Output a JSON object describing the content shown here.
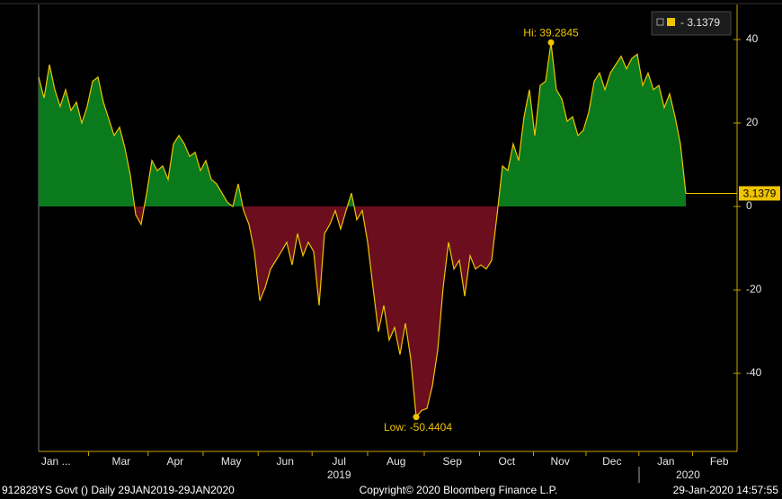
{
  "chart_data": {
    "type": "area",
    "xlim": [
      0,
      129.5
    ],
    "ylim": [
      -58.7,
      48.4
    ],
    "yticks": [
      -40,
      -20,
      0,
      20,
      40
    ],
    "xticks": [
      {
        "value": 3.2,
        "label": "Jan ..."
      },
      {
        "value": 15.3,
        "label": "Mar"
      },
      {
        "value": 25.3,
        "label": "Apr"
      },
      {
        "value": 35.7,
        "label": "May"
      },
      {
        "value": 45.7,
        "label": "Jun"
      },
      {
        "value": 55.7,
        "label": "Jul"
      },
      {
        "value": 66.3,
        "label": "Aug"
      },
      {
        "value": 76.7,
        "label": "Sep"
      },
      {
        "value": 86.8,
        "label": "Oct"
      },
      {
        "value": 96.7,
        "label": "Nov"
      },
      {
        "value": 106.3,
        "label": "Dec"
      },
      {
        "value": 116.3,
        "label": "Jan"
      },
      {
        "value": 126.2,
        "label": "Feb"
      }
    ],
    "year_labels": [
      {
        "value": 55.7,
        "label": "2019"
      },
      {
        "value": 120.4,
        "label": "2020"
      }
    ],
    "positive_color": "#0b7a1c",
    "negative_color": "#6b0e1e",
    "high_label": "Hi: 39.2845",
    "low_label": "Low: -50.4404",
    "series": [
      {
        "name": "- 3.1379",
        "color": "#f0c400",
        "values": [
          31,
          26,
          34,
          28,
          24,
          28,
          23,
          25,
          20,
          24,
          30,
          31,
          25,
          21,
          17,
          19,
          14,
          7.5,
          -2,
          -4.3,
          3,
          11,
          8.6,
          9.7,
          6.5,
          15,
          17,
          15,
          12,
          13,
          8.6,
          11,
          6.5,
          5.4,
          3.2,
          1,
          0,
          5.4,
          -1,
          -4.3,
          -10.8,
          -22.6,
          -19.4,
          -15,
          -12.9,
          -10.8,
          -8.6,
          -14,
          -6.5,
          -11.8,
          -8.6,
          -10.8,
          -23.7,
          -6.5,
          -4.3,
          -1,
          -5.4,
          -1,
          3.2,
          -3.2,
          -1,
          -8.6,
          -19.4,
          -30,
          -23.7,
          -32,
          -29,
          -35.5,
          -28,
          -36.6,
          -50.4404,
          -48.9,
          -48.4,
          -43,
          -34.4,
          -19.4,
          -8.6,
          -15,
          -12.9,
          -21.5,
          -11.8,
          -15,
          -14,
          -15,
          -12.9,
          -2,
          9.7,
          8.6,
          15,
          11,
          21.5,
          28,
          17,
          29,
          30,
          39.2845,
          28,
          25.8,
          20.4,
          21.5,
          17,
          18.3,
          22.6,
          30,
          32,
          28,
          32,
          34,
          36,
          33,
          35.5,
          36.5,
          29,
          32,
          28,
          29,
          23.7,
          27,
          21.5,
          15,
          3.1379
        ]
      }
    ]
  },
  "footer": {
    "left": "912828YS Govt ()  Daily 29JAN2019-29JAN2020",
    "center": "Copyright© 2020 Bloomberg Finance L.P.",
    "right": "29-Jan-2020 14:57:55"
  }
}
